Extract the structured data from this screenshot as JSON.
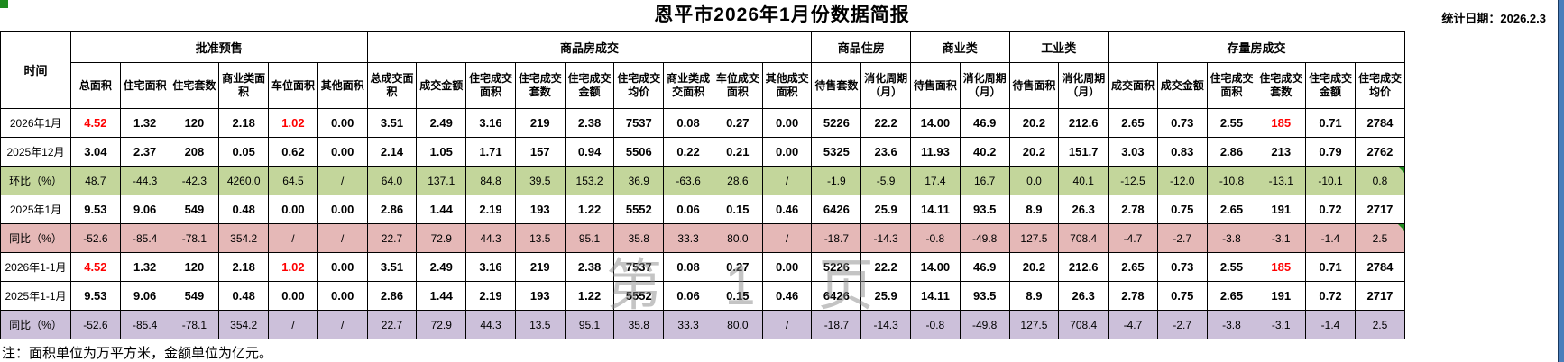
{
  "title": "恩平市2026年1月份数据简报",
  "stat_date": "统计日期：2026.2.3",
  "note": "注：面积单位为万平方米，金额单位为亿元。",
  "watermark": "第 1 页",
  "colors": {
    "mom_bg": "#c3d69b",
    "yoy_bg": "#e5b8b7",
    "yoy2_bg": "#ccc0da",
    "red_text": "#ff0000",
    "corner_green": "#1e8a1e",
    "edge_blue": "#4a7ebb"
  },
  "table": {
    "time_header": "时间",
    "groups": [
      {
        "label": "批准预售",
        "cols": [
          "总面积",
          "住宅面积",
          "住宅套数",
          "商业类面积",
          "车位面积",
          "其他面积"
        ]
      },
      {
        "label": "商品房成交",
        "cols": [
          "总成交面积",
          "成交金额",
          "住宅成交面积",
          "住宅成交套数",
          "住宅成交金额",
          "住宅成交均价",
          "商业类成交面积",
          "车位成交面积",
          "其他成交面积"
        ]
      },
      {
        "label": "商品住房",
        "cols": [
          "待售套数",
          "消化周期（月）"
        ]
      },
      {
        "label": "商业类",
        "cols": [
          "待售面积",
          "消化周期（月）"
        ]
      },
      {
        "label": "工业类",
        "cols": [
          "待售面积",
          "消化周期（月）"
        ]
      },
      {
        "label": "存量房成交",
        "cols": [
          "成交面积",
          "成交金额",
          "住宅成交面积",
          "住宅成交套数",
          "住宅成交金额",
          "住宅成交均价"
        ]
      }
    ],
    "rows": [
      {
        "label": "2026年1月",
        "type": "data",
        "values": [
          "4.52",
          "1.32",
          "120",
          "2.18",
          "1.02",
          "0.00",
          "3.51",
          "2.49",
          "3.16",
          "219",
          "2.38",
          "7537",
          "0.08",
          "0.27",
          "0.00",
          "5226",
          "22.2",
          "14.00",
          "46.9",
          "20.2",
          "212.6",
          "2.65",
          "0.73",
          "2.55",
          "185",
          "0.71",
          "2784"
        ],
        "red": [
          0,
          4,
          24
        ],
        "corner": []
      },
      {
        "label": "2025年12月",
        "type": "data",
        "values": [
          "3.04",
          "2.37",
          "208",
          "0.05",
          "0.62",
          "0.00",
          "2.14",
          "1.05",
          "1.71",
          "157",
          "0.94",
          "5506",
          "0.22",
          "0.21",
          "0.00",
          "5325",
          "23.6",
          "11.93",
          "40.2",
          "20.2",
          "151.7",
          "3.03",
          "0.83",
          "2.86",
          "213",
          "0.79",
          "2762"
        ],
        "red": [],
        "corner": []
      },
      {
        "label": "环比（%）",
        "type": "mom",
        "values": [
          "48.7",
          "-44.3",
          "-42.3",
          "4260.0",
          "64.5",
          "/",
          "64.0",
          "137.1",
          "84.8",
          "39.5",
          "153.2",
          "36.9",
          "-63.6",
          "28.6",
          "/",
          "-1.9",
          "-5.9",
          "17.4",
          "16.7",
          "0.0",
          "40.1",
          "-12.5",
          "-12.0",
          "-10.8",
          "-13.1",
          "-10.1",
          "0.8"
        ],
        "red": [],
        "corner": [
          26
        ]
      },
      {
        "label": "2025年1月",
        "type": "data",
        "values": [
          "9.53",
          "9.06",
          "549",
          "0.48",
          "0.00",
          "0.00",
          "2.86",
          "1.44",
          "2.19",
          "193",
          "1.22",
          "5552",
          "0.06",
          "0.15",
          "0.46",
          "6426",
          "25.9",
          "14.11",
          "93.5",
          "8.9",
          "26.3",
          "2.78",
          "0.75",
          "2.65",
          "191",
          "0.72",
          "2717"
        ],
        "red": [],
        "corner": []
      },
      {
        "label": "同比（%）",
        "type": "yoy",
        "values": [
          "-52.6",
          "-85.4",
          "-78.1",
          "354.2",
          "/",
          "/",
          "22.7",
          "72.9",
          "44.3",
          "13.5",
          "95.1",
          "35.8",
          "33.3",
          "80.0",
          "/",
          "-18.7",
          "-14.3",
          "-0.8",
          "-49.8",
          "127.5",
          "708.4",
          "-4.7",
          "-2.7",
          "-3.8",
          "-3.1",
          "-1.4",
          "2.5"
        ],
        "red": [],
        "corner": [
          26
        ]
      },
      {
        "label": "2026年1-1月",
        "type": "data",
        "values": [
          "4.52",
          "1.32",
          "120",
          "2.18",
          "1.02",
          "0.00",
          "3.51",
          "2.49",
          "3.16",
          "219",
          "2.38",
          "7537",
          "0.08",
          "0.27",
          "0.00",
          "5226",
          "22.2",
          "14.00",
          "46.9",
          "20.2",
          "212.6",
          "2.65",
          "0.73",
          "2.55",
          "185",
          "0.71",
          "2784"
        ],
        "red": [
          0,
          4,
          24
        ],
        "corner": []
      },
      {
        "label": "2025年1-1月",
        "type": "data",
        "values": [
          "9.53",
          "9.06",
          "549",
          "0.48",
          "0.00",
          "0.00",
          "2.86",
          "1.44",
          "2.19",
          "193",
          "1.22",
          "5552",
          "0.06",
          "0.15",
          "0.46",
          "6426",
          "25.9",
          "14.11",
          "93.5",
          "8.9",
          "26.3",
          "2.78",
          "0.75",
          "2.65",
          "191",
          "0.72",
          "2717"
        ],
        "red": [],
        "corner": []
      },
      {
        "label": "同比（%）",
        "type": "yoy2",
        "values": [
          "-52.6",
          "-85.4",
          "-78.1",
          "354.2",
          "/",
          "/",
          "22.7",
          "72.9",
          "44.3",
          "13.5",
          "95.1",
          "35.8",
          "33.3",
          "80.0",
          "/",
          "-18.7",
          "-14.3",
          "-0.8",
          "-49.8",
          "127.5",
          "708.4",
          "-4.7",
          "-2.7",
          "-3.8",
          "-3.1",
          "-1.4",
          "2.5"
        ],
        "red": [],
        "corner": []
      }
    ]
  }
}
